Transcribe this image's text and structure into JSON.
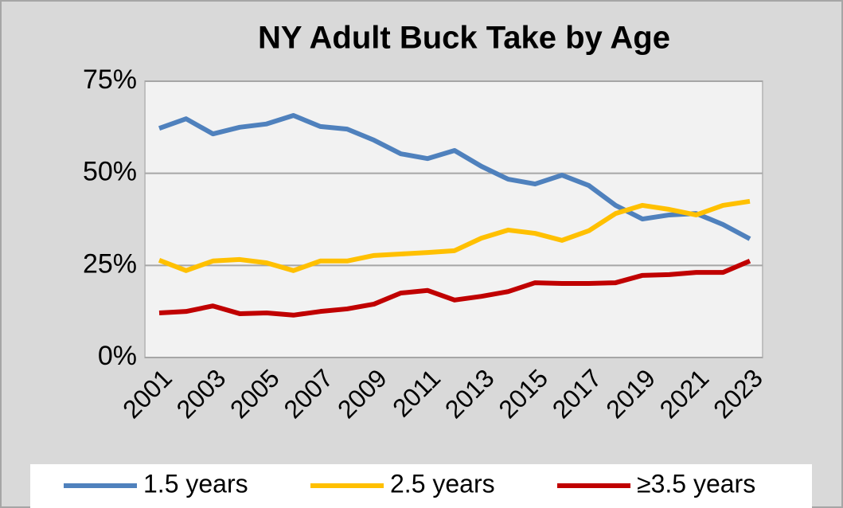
{
  "chart_data": {
    "type": "line",
    "title": "NY Adult Buck Take by Age",
    "categories": [
      "2001",
      null,
      "2003",
      null,
      "2005",
      null,
      "2007",
      null,
      "2009",
      null,
      "2011",
      null,
      "2013",
      null,
      "2015",
      null,
      "2017",
      null,
      "2019",
      null,
      "2021",
      null,
      "2023"
    ],
    "series": [
      {
        "name": "1.5 years",
        "color": "#4f81bd",
        "values": [
          62.2,
          64.8,
          60.7,
          62.5,
          63.4,
          65.7,
          62.7,
          62.0,
          59.0,
          55.3,
          54.0,
          56.2,
          51.9,
          48.4,
          47.1,
          49.5,
          46.7,
          41.3,
          37.6,
          38.7,
          39.1,
          36.1,
          32.2
        ]
      },
      {
        "name": "2.5 years",
        "color": "#ffc000",
        "values": [
          26.4,
          23.6,
          26.2,
          26.6,
          25.7,
          23.6,
          26.2,
          26.2,
          27.7,
          28.1,
          28.5,
          29.0,
          32.4,
          34.6,
          33.7,
          31.8,
          34.4,
          39.1,
          41.3,
          40.2,
          38.7,
          41.3,
          42.4
        ]
      },
      {
        "name": "≥3.5 years",
        "color": "#c00000",
        "values": [
          12.1,
          12.5,
          14.0,
          11.9,
          12.1,
          11.5,
          12.5,
          13.2,
          14.5,
          17.5,
          18.2,
          15.6,
          16.6,
          17.9,
          20.3,
          20.1,
          20.1,
          20.3,
          22.3,
          22.5,
          23.1,
          23.1,
          26.2
        ]
      }
    ],
    "ylim": [
      0,
      75
    ],
    "yticks": [
      {
        "value": 0,
        "label": "0%"
      },
      {
        "value": 25,
        "label": "25%"
      },
      {
        "value": 50,
        "label": "50%"
      },
      {
        "value": 75,
        "label": "75%"
      }
    ],
    "grid": true,
    "legend": "bottom"
  }
}
